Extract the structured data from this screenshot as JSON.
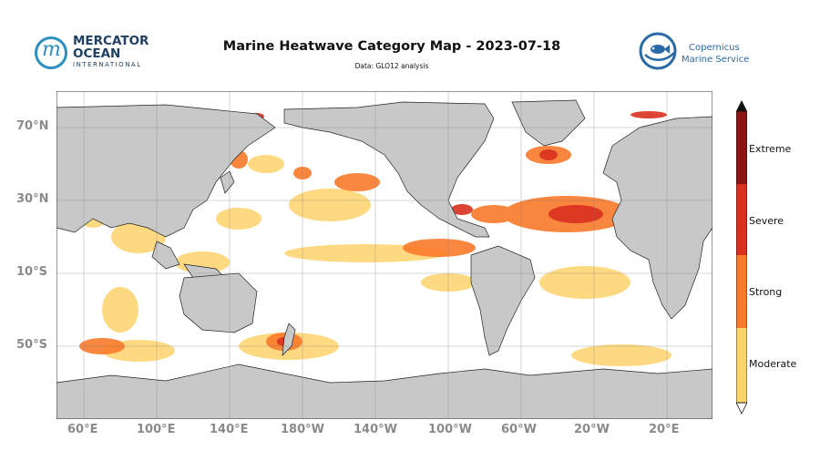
{
  "header": {
    "title": "Marine Heatwave Category Map - 2023-07-18",
    "subtitle": "Data: GLO12 analysis"
  },
  "logos": {
    "left": {
      "line1": "MERCATOR",
      "line2": "OCEAN",
      "line3": "INTERNATIONAL",
      "color": "#1f3f63",
      "accent": "#2b8fbf"
    },
    "right": {
      "line1": "Copernicus",
      "line2": "Marine Service",
      "color": "#2a6aa9",
      "icon": "fish-icon"
    }
  },
  "map": {
    "projection": "equirectangular",
    "lat_ticks": [
      "70°N",
      "30°N",
      "10°S",
      "50°S"
    ],
    "lon_ticks": [
      "60°E",
      "100°E",
      "140°E",
      "180°W",
      "140°W",
      "100°W",
      "60°W",
      "20°W",
      "20°E"
    ],
    "land_color": "#c8c8c8",
    "ocean_color": "#ffffff",
    "grid": true
  },
  "legend": {
    "categories": [
      "Moderate",
      "Strong",
      "Severe",
      "Extreme"
    ],
    "colors": [
      "#fdd36c",
      "#f97a2a",
      "#d9301f",
      "#8b1414"
    ],
    "extend_color": "#111111"
  }
}
